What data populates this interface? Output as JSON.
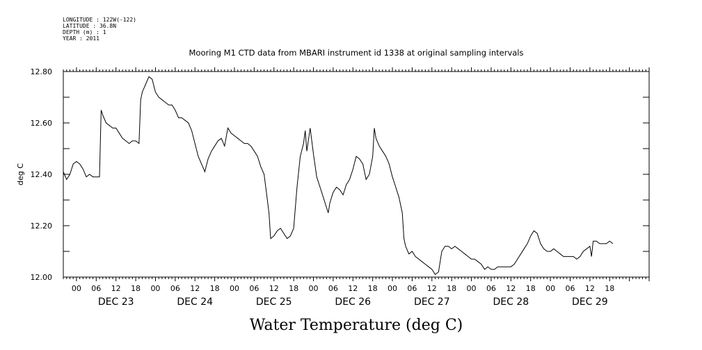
{
  "header": {
    "longitude": "LONGITUDE : 122W(-122)",
    "latitude": "LATITUDE : 36.8N",
    "depth": "DEPTH (m) : 1",
    "year": "YEAR : 2011"
  },
  "chart_data": {
    "type": "line",
    "title": "Mooring M1 CTD data from MBARI instrument id 1338 at original sampling intervals",
    "xlabel": "Water Temperature (deg C)",
    "ylabel": "deg C",
    "ylim": [
      12.0,
      12.8
    ],
    "yticks": [
      "12.00",
      "12.20",
      "12.40",
      "12.60",
      "12.80"
    ],
    "xlim_hours": [
      -4,
      174
    ],
    "x_units": "hours since 00:00 DEC 23 2011",
    "hour_tick_labels": [
      "00",
      "06",
      "12",
      "18",
      "00",
      "06",
      "12",
      "18",
      "00",
      "06",
      "12",
      "18",
      "00",
      "06",
      "12",
      "18",
      "00",
      "06",
      "12",
      "18",
      "00",
      "06",
      "12",
      "18",
      "00",
      "06",
      "12",
      "18"
    ],
    "day_labels": [
      "DEC 23",
      "DEC 24",
      "DEC 25",
      "DEC 26",
      "DEC 27",
      "DEC 28",
      "DEC 29"
    ],
    "grid": false,
    "series": [
      {
        "points": [
          [
            -4,
            12.41
          ],
          [
            -3,
            12.38
          ],
          [
            -2,
            12.4
          ],
          [
            -1,
            12.44
          ],
          [
            0,
            12.45
          ],
          [
            1,
            12.44
          ],
          [
            2,
            12.42
          ],
          [
            3,
            12.39
          ],
          [
            4,
            12.4
          ],
          [
            5,
            12.39
          ],
          [
            6,
            12.39
          ],
          [
            7,
            12.39
          ],
          [
            7.5,
            12.65
          ],
          [
            8,
            12.63
          ],
          [
            9,
            12.6
          ],
          [
            10,
            12.59
          ],
          [
            11,
            12.58
          ],
          [
            12,
            12.58
          ],
          [
            13,
            12.56
          ],
          [
            14,
            12.54
          ],
          [
            15,
            12.53
          ],
          [
            16,
            12.52
          ],
          [
            17,
            12.53
          ],
          [
            18,
            12.53
          ],
          [
            19,
            12.52
          ],
          [
            19.5,
            12.69
          ],
          [
            20,
            12.72
          ],
          [
            21,
            12.75
          ],
          [
            22,
            12.78
          ],
          [
            23,
            12.77
          ],
          [
            24,
            12.72
          ],
          [
            25,
            12.7
          ],
          [
            26,
            12.69
          ],
          [
            27,
            12.68
          ],
          [
            28,
            12.67
          ],
          [
            29,
            12.67
          ],
          [
            30,
            12.65
          ],
          [
            31,
            12.62
          ],
          [
            32,
            12.62
          ],
          [
            33,
            12.61
          ],
          [
            34,
            12.6
          ],
          [
            35,
            12.57
          ],
          [
            36,
            12.52
          ],
          [
            37,
            12.47
          ],
          [
            38,
            12.44
          ],
          [
            39,
            12.41
          ],
          [
            40,
            12.46
          ],
          [
            41,
            12.49
          ],
          [
            42,
            12.51
          ],
          [
            43,
            12.53
          ],
          [
            44,
            12.54
          ],
          [
            45,
            12.51
          ],
          [
            46,
            12.58
          ],
          [
            47,
            12.56
          ],
          [
            48,
            12.55
          ],
          [
            49,
            12.54
          ],
          [
            50,
            12.53
          ],
          [
            51,
            12.52
          ],
          [
            52,
            12.52
          ],
          [
            53,
            12.51
          ],
          [
            54,
            12.49
          ],
          [
            55,
            12.47
          ],
          [
            56,
            12.43
          ],
          [
            57,
            12.4
          ],
          [
            58,
            12.3
          ],
          [
            58.5,
            12.25
          ],
          [
            59,
            12.15
          ],
          [
            60,
            12.16
          ],
          [
            61,
            12.18
          ],
          [
            62,
            12.19
          ],
          [
            63,
            12.17
          ],
          [
            64,
            12.15
          ],
          [
            65,
            12.16
          ],
          [
            66,
            12.19
          ],
          [
            67,
            12.35
          ],
          [
            68,
            12.47
          ],
          [
            69,
            12.52
          ],
          [
            69.5,
            12.57
          ],
          [
            70,
            12.49
          ],
          [
            71,
            12.58
          ],
          [
            72,
            12.48
          ],
          [
            73,
            12.39
          ],
          [
            74,
            12.35
          ],
          [
            75,
            12.31
          ],
          [
            76,
            12.27
          ],
          [
            76.5,
            12.25
          ],
          [
            77,
            12.29
          ],
          [
            78,
            12.33
          ],
          [
            79,
            12.35
          ],
          [
            80,
            12.34
          ],
          [
            81,
            12.32
          ],
          [
            82,
            12.36
          ],
          [
            83,
            12.38
          ],
          [
            84,
            12.42
          ],
          [
            85,
            12.47
          ],
          [
            86,
            12.46
          ],
          [
            87,
            12.44
          ],
          [
            88,
            12.38
          ],
          [
            89,
            12.4
          ],
          [
            90,
            12.47
          ],
          [
            90.5,
            12.58
          ],
          [
            91,
            12.54
          ],
          [
            92,
            12.51
          ],
          [
            93,
            12.49
          ],
          [
            94,
            12.47
          ],
          [
            95,
            12.44
          ],
          [
            96,
            12.39
          ],
          [
            97,
            12.35
          ],
          [
            98,
            12.31
          ],
          [
            99,
            12.25
          ],
          [
            99.5,
            12.15
          ],
          [
            100,
            12.12
          ],
          [
            101,
            12.09
          ],
          [
            102,
            12.1
          ],
          [
            103,
            12.08
          ],
          [
            104,
            12.07
          ],
          [
            105,
            12.06
          ],
          [
            106,
            12.05
          ],
          [
            107,
            12.04
          ],
          [
            108,
            12.03
          ],
          [
            109,
            12.01
          ],
          [
            110,
            12.02
          ],
          [
            111,
            12.1
          ],
          [
            112,
            12.12
          ],
          [
            113,
            12.12
          ],
          [
            114,
            12.11
          ],
          [
            115,
            12.12
          ],
          [
            116,
            12.11
          ],
          [
            117,
            12.1
          ],
          [
            118,
            12.09
          ],
          [
            119,
            12.08
          ],
          [
            120,
            12.07
          ],
          [
            121,
            12.07
          ],
          [
            122,
            12.06
          ],
          [
            123,
            12.05
          ],
          [
            124,
            12.03
          ],
          [
            125,
            12.04
          ],
          [
            126,
            12.03
          ],
          [
            127,
            12.03
          ],
          [
            128,
            12.04
          ],
          [
            129,
            12.04
          ],
          [
            130,
            12.04
          ],
          [
            131,
            12.04
          ],
          [
            132,
            12.04
          ],
          [
            133,
            12.05
          ],
          [
            134,
            12.07
          ],
          [
            135,
            12.09
          ],
          [
            136,
            12.11
          ],
          [
            137,
            12.13
          ],
          [
            138,
            12.16
          ],
          [
            139,
            12.18
          ],
          [
            140,
            12.17
          ],
          [
            141,
            12.13
          ],
          [
            142,
            12.11
          ],
          [
            143,
            12.1
          ],
          [
            144,
            12.1
          ],
          [
            145,
            12.11
          ],
          [
            146,
            12.1
          ],
          [
            147,
            12.09
          ],
          [
            148,
            12.08
          ],
          [
            149,
            12.08
          ],
          [
            150,
            12.08
          ],
          [
            151,
            12.08
          ],
          [
            152,
            12.07
          ],
          [
            153,
            12.08
          ],
          [
            154,
            12.1
          ],
          [
            155,
            12.11
          ],
          [
            156,
            12.12
          ],
          [
            156.5,
            12.08
          ],
          [
            157,
            12.14
          ],
          [
            158,
            12.14
          ],
          [
            159,
            12.13
          ],
          [
            160,
            12.13
          ],
          [
            161,
            12.13
          ],
          [
            162,
            12.14
          ],
          [
            163,
            12.13
          ]
        ]
      }
    ]
  }
}
